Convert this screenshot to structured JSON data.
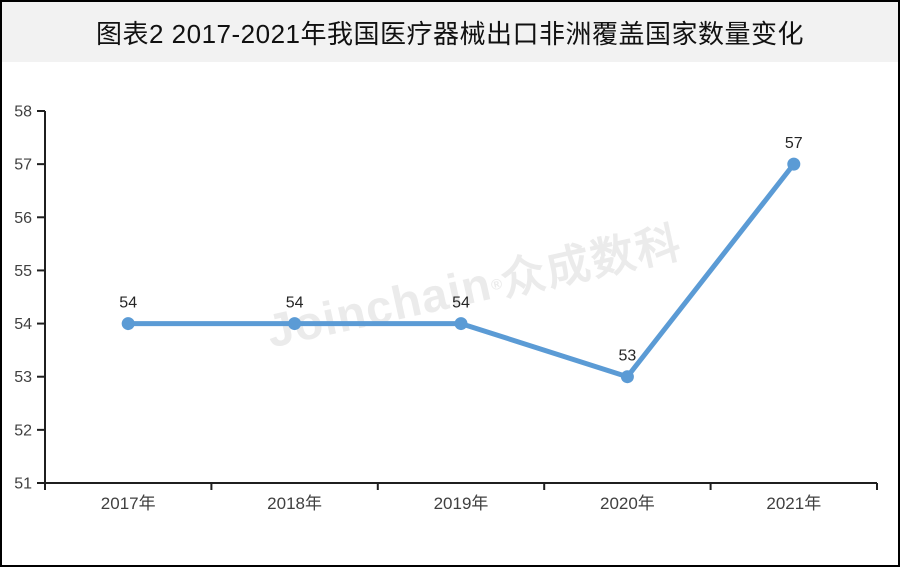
{
  "header": {
    "title": "图表2  2017-2021年我国医疗器械出口非洲覆盖国家数量变化"
  },
  "watermark": {
    "brand": "Joinchain",
    "reg": "®",
    "company": "众成数科"
  },
  "theme": {
    "accent": "#5B9BD5",
    "title_band_bg": "#f2f2f2",
    "border_color": "#000000",
    "axis_color": "#1f1f1f",
    "tick_label_color": "#404040",
    "data_label_color": "#262626",
    "watermark_color": "#ebebeb"
  },
  "chart_data": {
    "type": "line",
    "title": "图表2 2017-2021年我国医疗器械出口非洲覆盖国家数量变化",
    "categories": [
      "2017年",
      "2018年",
      "2019年",
      "2020年",
      "2021年"
    ],
    "values": [
      54,
      54,
      54,
      53,
      57
    ],
    "data_labels": [
      54,
      54,
      54,
      53,
      57
    ],
    "xlabel": "",
    "ylabel": "",
    "ylim": [
      51,
      58
    ],
    "yticks": [
      51,
      52,
      53,
      54,
      55,
      56,
      57,
      58
    ],
    "grid": false,
    "legend": "none",
    "marker": "circle",
    "line_color": "#5B9BD5"
  }
}
